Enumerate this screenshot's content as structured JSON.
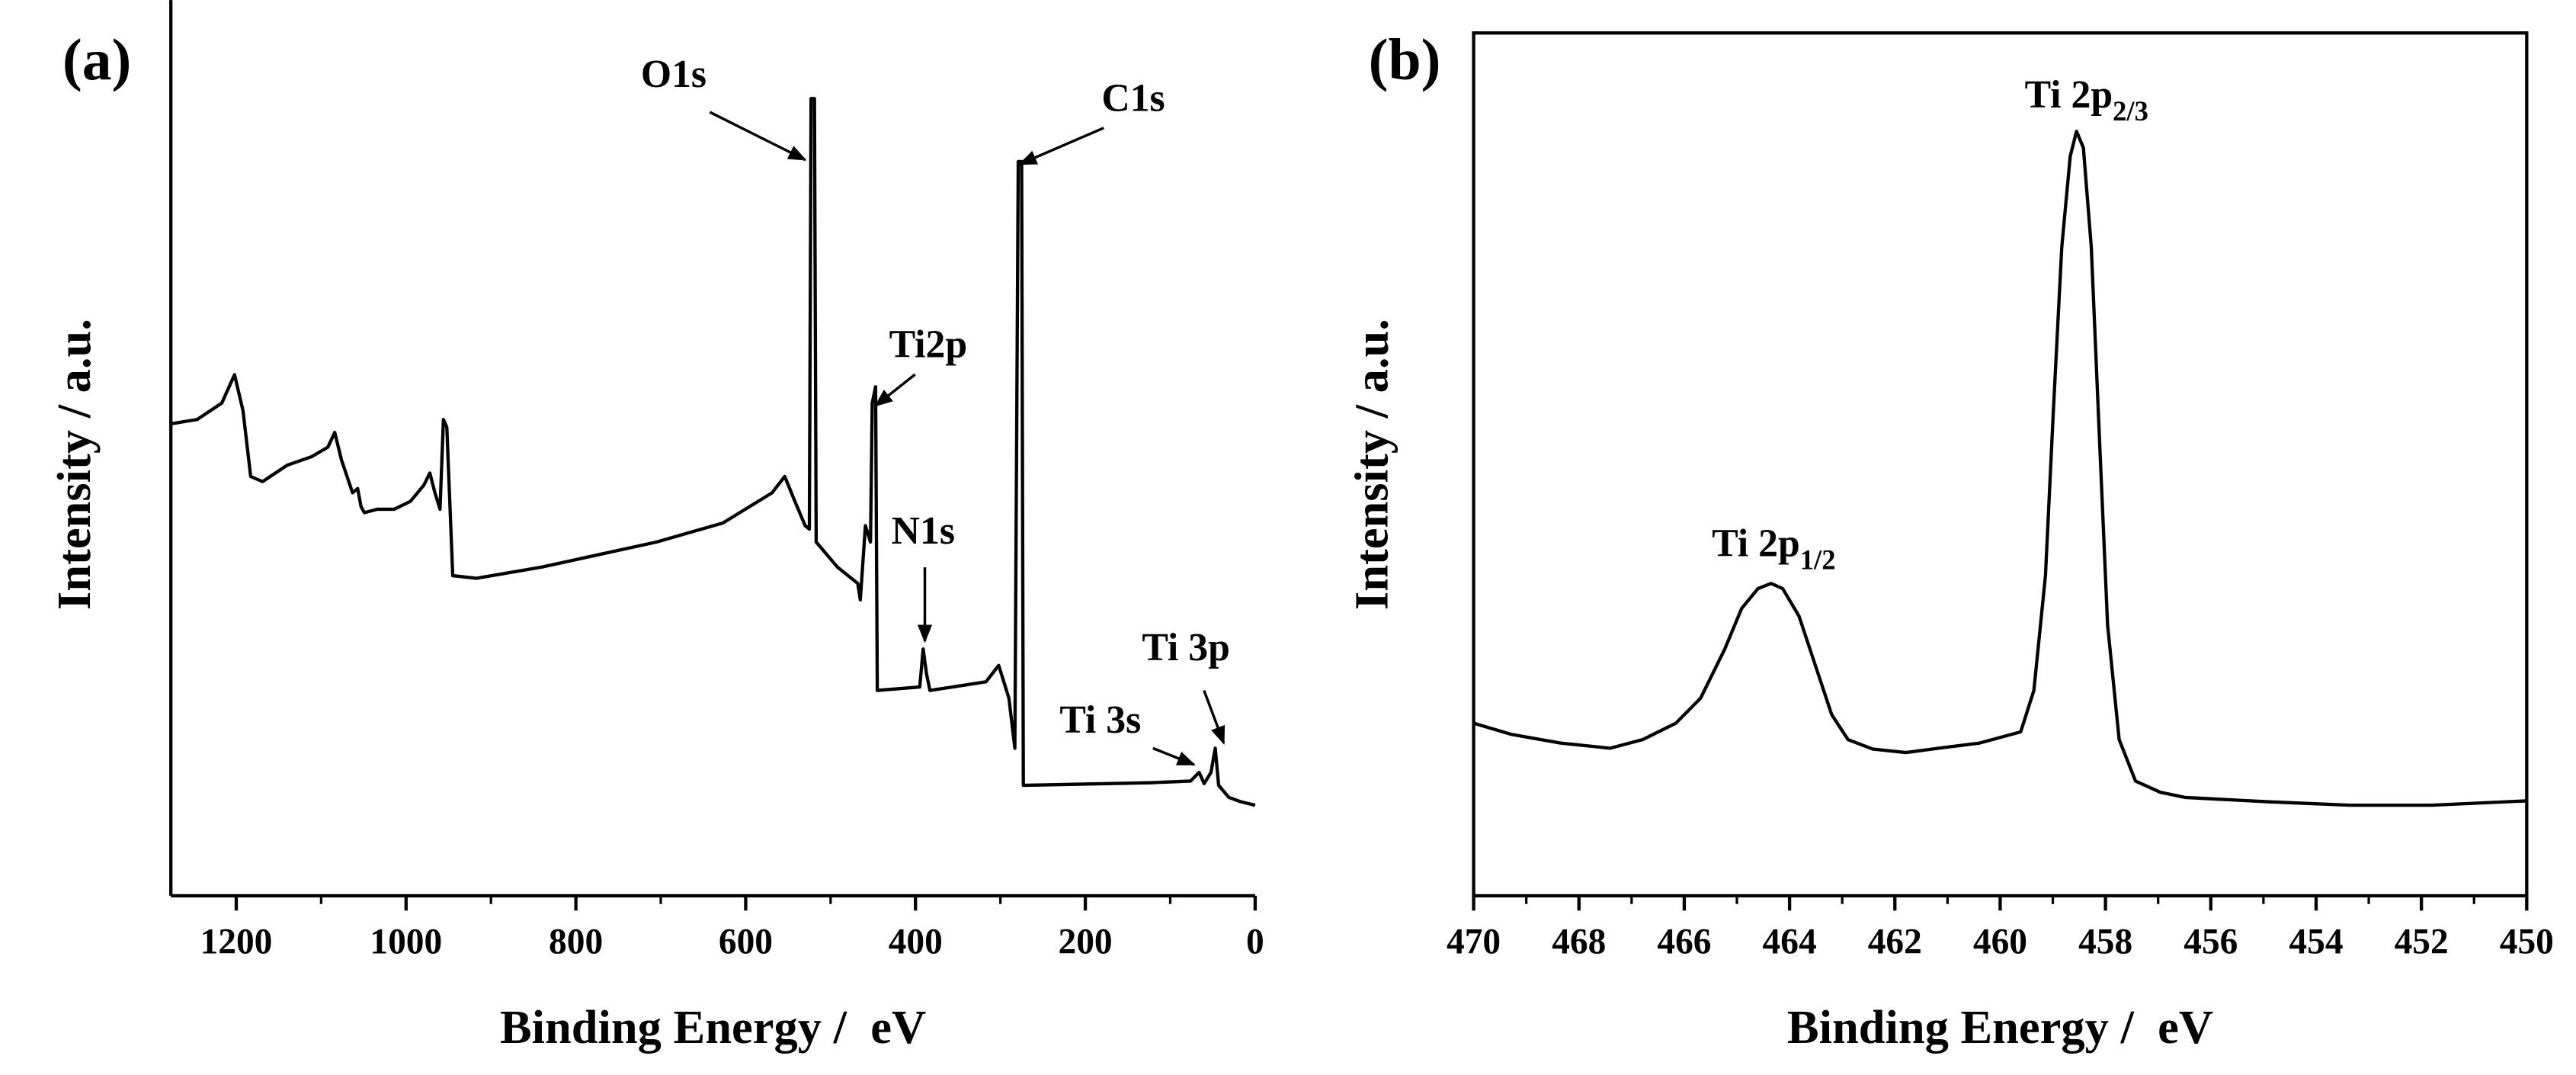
{
  "chart_data": [
    {
      "type": "line",
      "label": "(a)",
      "xlabel": "Binding Energy /  eV",
      "ylabel": "Intensity / a.u.",
      "xlim": [
        1277,
        0
      ],
      "xticks": [
        1200,
        1000,
        800,
        600,
        400,
        200,
        0
      ],
      "xminorticks": [
        1100,
        900,
        700,
        500,
        300,
        100
      ],
      "ylim": [
        0,
        100
      ],
      "box": false,
      "arrows": true,
      "color": "#000000",
      "x": [
        1277,
        1246,
        1217,
        1202,
        1192,
        1183,
        1169,
        1140,
        1111,
        1092,
        1084,
        1076,
        1063,
        1057,
        1053,
        1049,
        1034,
        1014,
        995,
        979,
        972,
        966,
        960,
        956,
        952,
        945,
        917,
        840,
        705,
        627,
        569,
        554,
        542,
        530,
        525,
        523,
        519,
        517,
        492,
        468,
        465,
        459,
        453,
        451,
        447,
        445,
        395,
        391,
        387,
        383,
        317,
        302,
        290,
        283,
        279,
        275,
        273,
        124,
        76,
        66,
        60,
        52,
        47,
        43,
        31,
        17,
        0
      ],
      "values": [
        54.7,
        55.2,
        57.1,
        60.4,
        56.2,
        48.6,
        48.0,
        49.9,
        50.9,
        52.0,
        53.7,
        50.5,
        46.7,
        47.2,
        45.1,
        44.4,
        44.8,
        44.8,
        45.7,
        47.6,
        49.0,
        46.7,
        44.8,
        55.2,
        54.3,
        37.1,
        36.8,
        38.1,
        41.0,
        43.2,
        46.7,
        48.6,
        45.7,
        42.9,
        42.5,
        92.4,
        92.4,
        41.0,
        38.1,
        36.2,
        34.3,
        42.9,
        41.0,
        57.1,
        59.0,
        23.8,
        24.2,
        28.6,
        25.7,
        23.8,
        24.8,
        26.7,
        22.9,
        17.1,
        85.1,
        85.1,
        12.8,
        13.1,
        13.3,
        14.3,
        13.0,
        14.3,
        17.1,
        12.8,
        11.4,
        10.9,
        10.5
      ],
      "annotations": [
        {
          "text": "O1s",
          "x": 530,
          "y": 85.3
        },
        {
          "text": "C1s",
          "x": 277,
          "y": 84.8
        },
        {
          "text": "Ti2p",
          "x": 447,
          "y": 56.8
        },
        {
          "text": "N1s",
          "x": 389,
          "y": 29.5
        },
        {
          "text": "Ti 3s",
          "x": 72,
          "y": 15.2
        },
        {
          "text": "Ti 3p",
          "x": 37,
          "y": 17.7
        }
      ]
    },
    {
      "type": "line",
      "label": "(b)",
      "xlabel": "Binding Energy /  eV",
      "ylabel": "Intensity / a.u.",
      "xlim": [
        470,
        450
      ],
      "xticks": [
        470,
        468,
        466,
        464,
        462,
        460,
        458,
        456,
        454,
        452,
        450
      ],
      "xminorticks": [
        469,
        467,
        465,
        463,
        461,
        459,
        457,
        455,
        453,
        451
      ],
      "ylim": [
        0,
        100
      ],
      "box": true,
      "arrows": false,
      "color": "#000000",
      "x": [
        470.0,
        469.28,
        468.35,
        467.41,
        466.79,
        466.16,
        465.69,
        465.23,
        464.91,
        464.6,
        464.35,
        464.13,
        463.82,
        463.51,
        463.2,
        462.89,
        462.42,
        461.79,
        461.17,
        460.39,
        459.61,
        459.36,
        459.14,
        458.99,
        458.83,
        458.67,
        458.55,
        458.42,
        458.27,
        458.11,
        457.96,
        457.74,
        457.43,
        456.96,
        456.49,
        454.93,
        453.37,
        451.81,
        450.0
      ],
      "values": [
        20.0,
        18.7,
        17.7,
        17.1,
        18.1,
        20.0,
        22.9,
        28.6,
        33.3,
        35.6,
        36.2,
        35.6,
        32.4,
        26.7,
        21.0,
        18.1,
        17.0,
        16.6,
        17.1,
        17.7,
        19.0,
        23.8,
        37.1,
        56.2,
        75.2,
        85.7,
        88.6,
        86.7,
        75.2,
        52.4,
        31.4,
        18.1,
        13.3,
        12.0,
        11.4,
        10.9,
        10.5,
        10.5,
        11.0
      ],
      "annotations": [
        {
          "text": "Ti 2p",
          "sub": "1/2",
          "x": 464.3,
          "y": 40.4
        },
        {
          "text": "Ti 2p",
          "sub": "2/3",
          "x": 458.36,
          "y": 92.4
        }
      ]
    }
  ]
}
